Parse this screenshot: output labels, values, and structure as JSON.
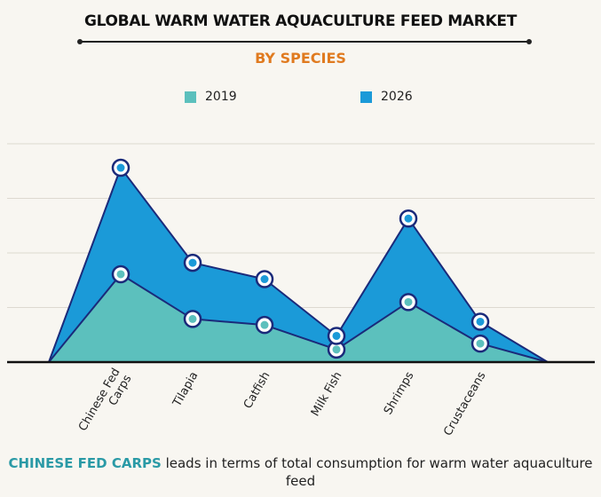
{
  "chart_data": {
    "type": "area",
    "title": "GLOBAL WARM WATER AQUACULTURE FEED MARKET",
    "subtitle": "BY SPECIES",
    "categories": [
      "Chinese Fed Carps",
      "Tilapia",
      "Catfish",
      "Milk Fish",
      "Shrimps",
      "Crustaceans"
    ],
    "series": [
      {
        "name": "2019",
        "values": [
          1.61,
          0.79,
          0.68,
          0.23,
          1.1,
          0.34
        ],
        "color": "#5cc0bd"
      },
      {
        "name": "2026",
        "values": [
          3.56,
          1.82,
          1.52,
          0.48,
          2.63,
          0.74
        ],
        "color": "#1b9ad8"
      }
    ],
    "line_color": "#1a2a7a",
    "ylim": [
      0,
      4
    ],
    "grid": true,
    "y_axis_labels": false,
    "legend_placement": "top",
    "xlabel": "",
    "ylabel": ""
  },
  "caption": {
    "highlight": "CHINESE FED CARPS",
    "text": " leads in terms of total consumption for warm water aquaculture feed"
  }
}
